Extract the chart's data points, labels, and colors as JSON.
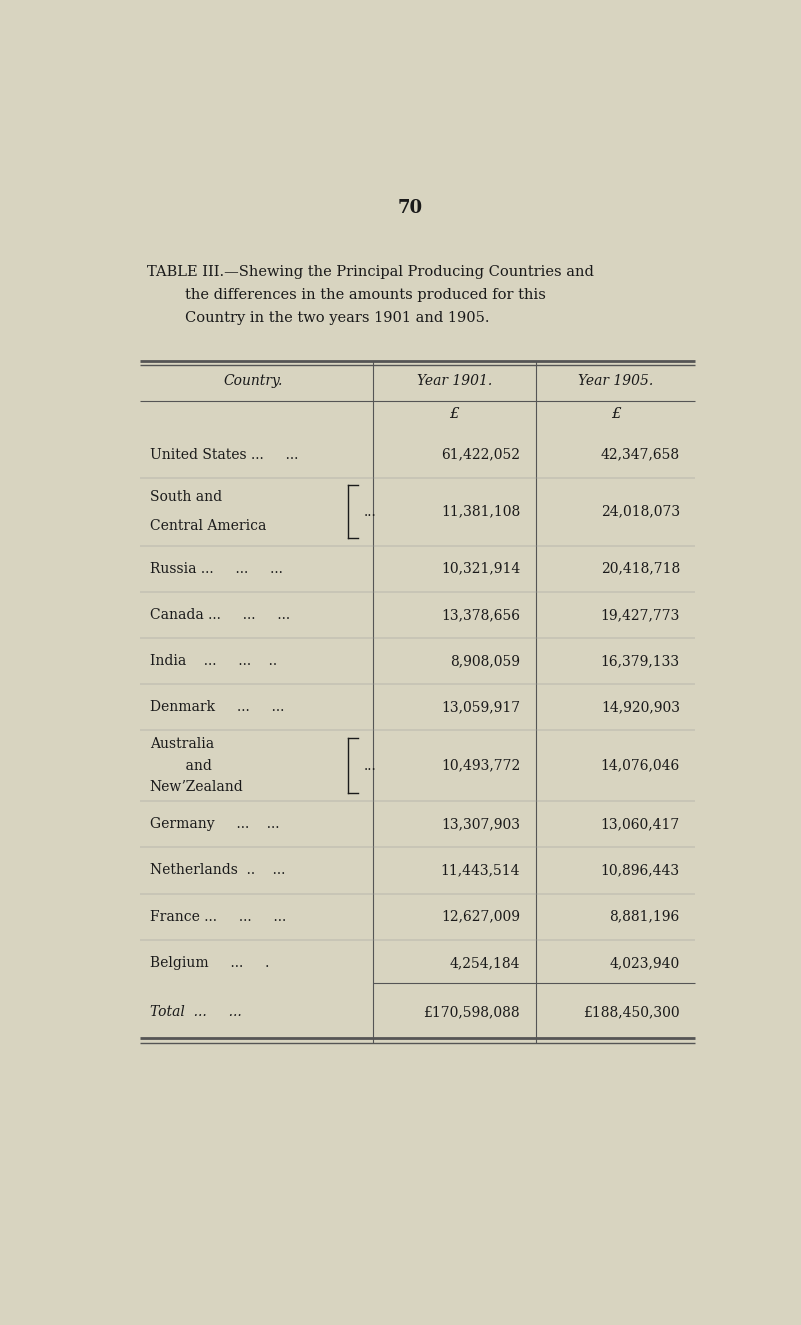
{
  "page_number": "70",
  "title_line1": "TABLE III.—Shewing the Principal Producing Countries and",
  "title_line2": "the differences in the amounts produced for this",
  "title_line3": "Country in the two years 1901 and 1905.",
  "col_headers": [
    "Country.",
    "Year 1901.",
    "Year 1905."
  ],
  "currency_symbol": "£",
  "rows": [
    {
      "country_lines": [
        "United States ...     ..."
      ],
      "year1901": "61,422,052",
      "year1905": "42,347,658",
      "bracket": false
    },
    {
      "country_lines": [
        "South and",
        "Central America"
      ],
      "year1901": "11,381,108",
      "year1905": "24,018,073",
      "bracket": true
    },
    {
      "country_lines": [
        "Russia ...     ...     ..."
      ],
      "year1901": "10,321,914",
      "year1905": "20,418,718",
      "bracket": false
    },
    {
      "country_lines": [
        "Canada ...     ...     ..."
      ],
      "year1901": "13,378,656",
      "year1905": "19,427,773",
      "bracket": false
    },
    {
      "country_lines": [
        "India    ...     ...    .."
      ],
      "year1901": "8,908,059",
      "year1905": "16,379,133",
      "bracket": false
    },
    {
      "country_lines": [
        "Denmark     ...     ..."
      ],
      "year1901": "13,059,917",
      "year1905": "14,920,903",
      "bracket": false
    },
    {
      "country_lines": [
        "Australia",
        "    and",
        "NewʼZealand"
      ],
      "year1901": "10,493,772",
      "year1905": "14,076,046",
      "bracket": true
    },
    {
      "country_lines": [
        "Germany     ...    ..."
      ],
      "year1901": "13,307,903",
      "year1905": "13,060,417",
      "bracket": false
    },
    {
      "country_lines": [
        "Netherlands  ..    ..."
      ],
      "year1901": "11,443,514",
      "year1905": "10,896,443",
      "bracket": false
    },
    {
      "country_lines": [
        "France ...     ...     ..."
      ],
      "year1901": "12,627,009",
      "year1905": "8,881,196",
      "bracket": false
    },
    {
      "country_lines": [
        "Belgium     ...     ."
      ],
      "year1901": "4,254,184",
      "year1905": "4,023,940",
      "bracket": false
    }
  ],
  "total_label": "Total  ...     ...",
  "total_1901": "£170,598,088",
  "total_1905": "£188,450,300",
  "bg_color": "#d8d4c0",
  "text_color": "#1a1a1a",
  "line_color": "#555555"
}
